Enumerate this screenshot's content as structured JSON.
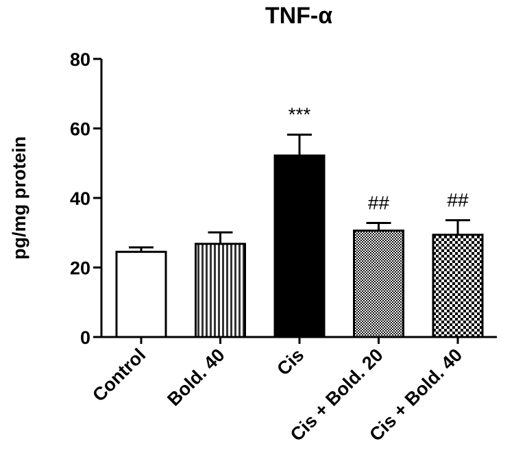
{
  "chart_data": {
    "type": "bar",
    "title": "TNF-α",
    "xlabel": "",
    "ylabel": "pg/mg protein",
    "ylim": [
      0,
      80
    ],
    "yticks": [
      "0",
      "20",
      "40",
      "60",
      "80"
    ],
    "grid": false,
    "categories": [
      "Control",
      "Bold. 40",
      "Cis",
      "Cis + Bold. 20",
      "Cis + Bold. 40"
    ],
    "values": [
      24.5,
      26.8,
      52.2,
      30.6,
      29.4
    ],
    "errors": [
      1.3,
      3.3,
      6.0,
      2.2,
      4.2
    ],
    "annotations": [
      "",
      "",
      "***",
      "##",
      "##"
    ],
    "fills": [
      "white",
      "vertical-stripes",
      "black",
      "fine-checker",
      "coarse-checker"
    ]
  }
}
